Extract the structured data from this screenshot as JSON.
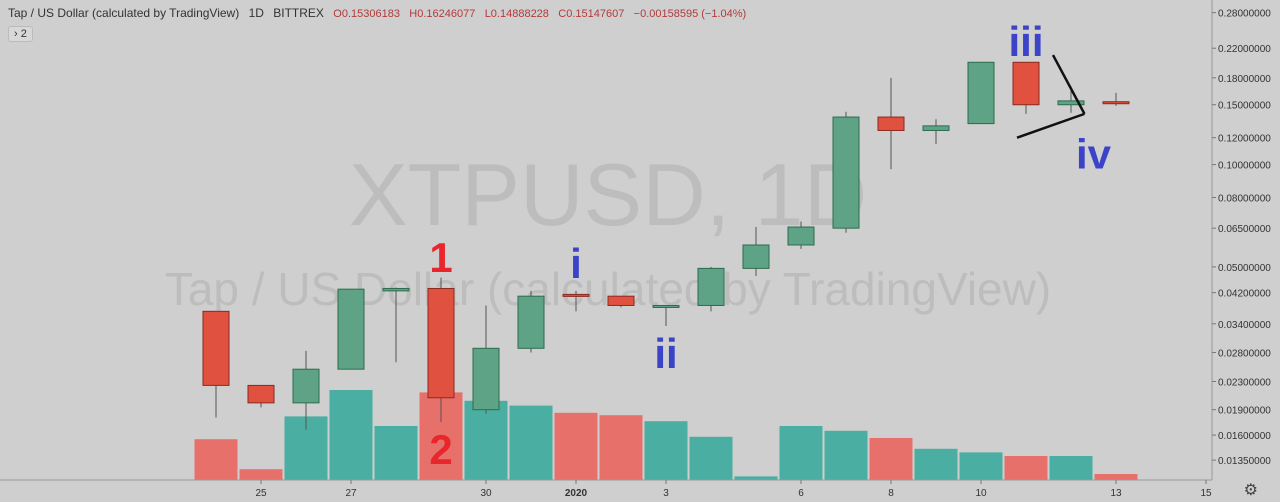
{
  "header": {
    "title": "Tap / US Dollar (calculated by TradingView)",
    "interval": "1D",
    "exchange": "BITTREX",
    "open": "O0.15306183",
    "high": "H0.16246077",
    "low": "L0.14888228",
    "close": "C0.15147607",
    "change": "−0.00158595 (−1.04%)"
  },
  "indicator_toggle": "› 2",
  "watermark": {
    "symbol": "XTPUSD, 1D",
    "name": "Tap / US Dollar (calculated by TradingView)"
  },
  "settings_icon": "gear-icon",
  "colors": {
    "up": "#5ea386",
    "down": "#e0513f",
    "vol_up": "#4aaea2",
    "vol_down": "#e8706b",
    "background": "#cfcfcf"
  },
  "chart_data": {
    "type": "candlestick",
    "yscale": "log",
    "ylim": [
      0.0118,
      0.305
    ],
    "y_ticks": [
      "0.28000000",
      "0.22000000",
      "0.18000000",
      "0.15000000",
      "0.12000000",
      "0.10000000",
      "0.08000000",
      "0.06500000",
      "0.05000000",
      "0.04200000",
      "0.03400000",
      "0.02800000",
      "0.02300000",
      "0.01900000",
      "0.01600000",
      "0.01350000"
    ],
    "x_ticks": [
      "25",
      "27",
      "30",
      "2020",
      "3",
      "6",
      "8",
      "10",
      "13",
      "15"
    ],
    "x_tick_index": [
      1,
      3,
      6,
      8,
      10,
      13,
      15,
      17,
      20,
      22
    ],
    "candles": [
      {
        "o": 0.037,
        "h": 0.037,
        "l": 0.018,
        "c": 0.0224
      },
      {
        "o": 0.0224,
        "h": 0.0224,
        "l": 0.0193,
        "c": 0.0199
      },
      {
        "o": 0.0199,
        "h": 0.0283,
        "l": 0.0166,
        "c": 0.025
      },
      {
        "o": 0.025,
        "h": 0.043,
        "l": 0.025,
        "c": 0.043
      },
      {
        "o": 0.0425,
        "h": 0.0435,
        "l": 0.0262,
        "c": 0.0432
      },
      {
        "o": 0.0432,
        "h": 0.0465,
        "l": 0.0175,
        "c": 0.0206
      },
      {
        "o": 0.019,
        "h": 0.0385,
        "l": 0.0185,
        "c": 0.0288
      },
      {
        "o": 0.0288,
        "h": 0.0425,
        "l": 0.028,
        "c": 0.041
      },
      {
        "o": 0.0415,
        "h": 0.0425,
        "l": 0.037,
        "c": 0.041
      },
      {
        "o": 0.041,
        "h": 0.041,
        "l": 0.038,
        "c": 0.0385
      },
      {
        "o": 0.038,
        "h": 0.0385,
        "l": 0.0335,
        "c": 0.0385
      },
      {
        "o": 0.0385,
        "h": 0.05,
        "l": 0.037,
        "c": 0.0495
      },
      {
        "o": 0.0495,
        "h": 0.0655,
        "l": 0.047,
        "c": 0.058
      },
      {
        "o": 0.058,
        "h": 0.068,
        "l": 0.0565,
        "c": 0.0655
      },
      {
        "o": 0.065,
        "h": 0.143,
        "l": 0.063,
        "c": 0.138
      },
      {
        "o": 0.138,
        "h": 0.18,
        "l": 0.097,
        "c": 0.126
      },
      {
        "o": 0.126,
        "h": 0.136,
        "l": 0.115,
        "c": 0.13
      },
      {
        "o": 0.132,
        "h": 0.2,
        "l": 0.132,
        "c": 0.2
      },
      {
        "o": 0.2,
        "h": 0.2,
        "l": 0.141,
        "c": 0.15
      },
      {
        "o": 0.15,
        "h": 0.17,
        "l": 0.142,
        "c": 0.154
      },
      {
        "o": 0.1531,
        "h": 0.1625,
        "l": 0.1489,
        "c": 0.1515
      }
    ],
    "volume": {
      "values": [
        34,
        9,
        53,
        75,
        45,
        73,
        66,
        62,
        56,
        54,
        49,
        36,
        3,
        45,
        41,
        35,
        26,
        23,
        20,
        20,
        5
      ],
      "max": 100
    },
    "annotations": [
      {
        "text": "1",
        "color": "#e8262b",
        "x_index": 5,
        "y": 0.052
      },
      {
        "text": "2",
        "color": "#e8262b",
        "x_index": 5,
        "y": 0.0142
      },
      {
        "text": "i",
        "color": "#3b44c9",
        "x_index": 8,
        "y": 0.05
      },
      {
        "text": "ii",
        "color": "#3b44c9",
        "x_index": 10,
        "y": 0.0272
      },
      {
        "text": "iii",
        "color": "#3b44c9",
        "x_index": 18,
        "y": 0.225
      },
      {
        "text": "iv",
        "color": "#3b44c9",
        "x_index": 19.5,
        "y": 0.105
      }
    ],
    "wave_lines": [
      {
        "x1": 17.8,
        "y1": 0.12,
        "x2": 19.3,
        "y2": 0.141
      },
      {
        "x1": 18.6,
        "y1": 0.21,
        "x2": 19.3,
        "y2": 0.141
      }
    ]
  }
}
